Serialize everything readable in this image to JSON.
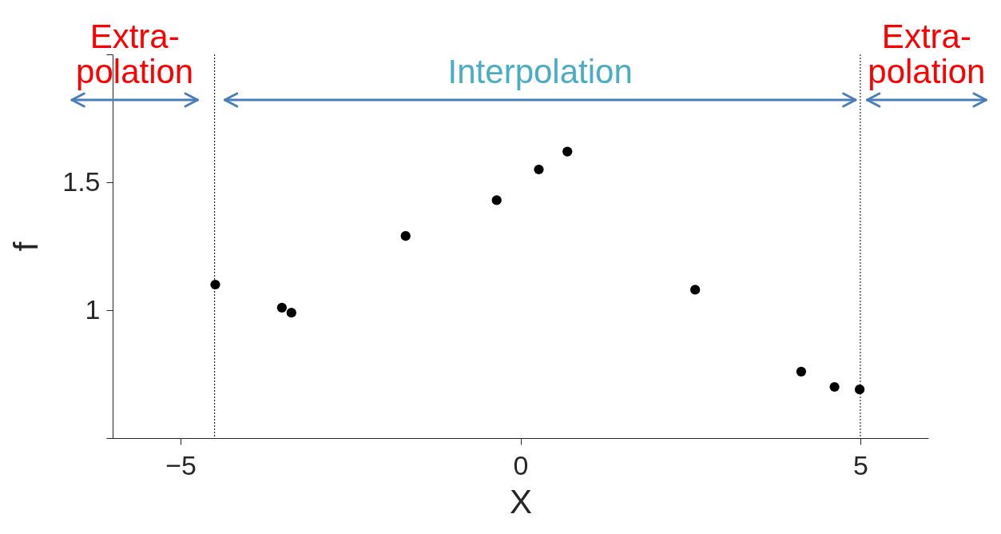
{
  "chart_data": {
    "type": "scatter",
    "xlabel": "X",
    "ylabel": "f",
    "x": [
      -4.49,
      -3.51,
      -3.37,
      -1.69,
      -0.35,
      0.27,
      0.69,
      2.57,
      4.13,
      4.62,
      4.99
    ],
    "series": [
      {
        "color": "#000000",
        "values": [
          1.1,
          1.01,
          0.99,
          1.29,
          1.43,
          1.55,
          1.62,
          1.08,
          0.76,
          0.7,
          0.69
        ]
      }
    ],
    "xlim": [
      -6,
      6
    ],
    "xticks": [
      -5,
      0,
      5
    ],
    "ylim": [
      0.5,
      2.0
    ],
    "yticks": [
      {
        "value": 0.5,
        "label": null
      },
      1,
      1.5,
      {
        "value": 2.0,
        "label": null
      }
    ],
    "ref_lines": [
      {
        "axis": "x",
        "value": -4.5,
        "color": "#000000",
        "line_style": "dotted"
      },
      {
        "axis": "x",
        "value": 5,
        "color": "#000000",
        "line_style": "dotted"
      }
    ],
    "annotations": [
      "Extra-\npolation",
      "Interpolation",
      "Extra-\npolation"
    ],
    "marker": "circle",
    "grid": false
  }
}
